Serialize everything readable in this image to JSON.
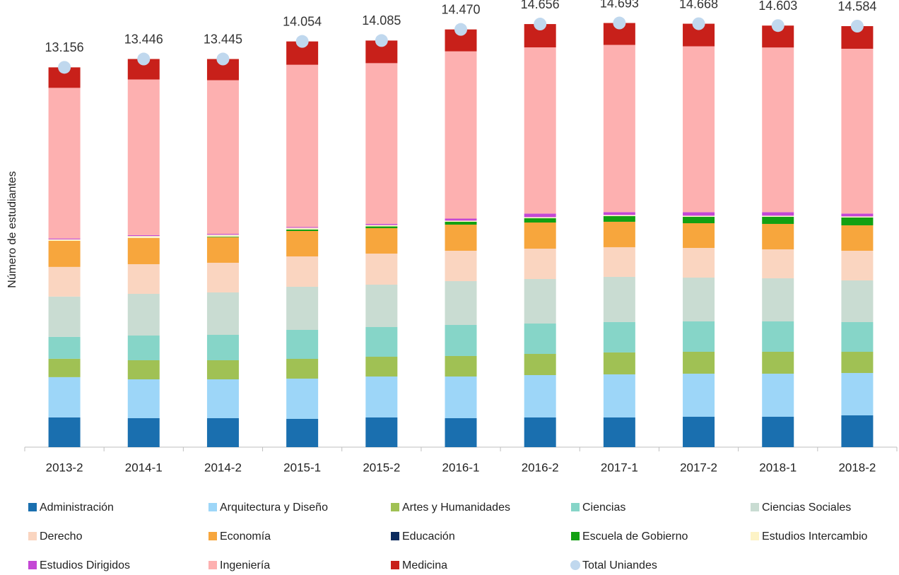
{
  "chart_data": {
    "type": "stacked_bar",
    "y_axis_label": "Número de estudiantes",
    "categories": [
      "2013-2",
      "2014-1",
      "2014-2",
      "2015-1",
      "2015-2",
      "2016-1",
      "2016-2",
      "2017-1",
      "2017-2",
      "2018-1",
      "2018-2"
    ],
    "ylim": [
      0,
      15000
    ],
    "grid": false,
    "legend": "bottom",
    "series": [
      {
        "name": "Administración",
        "color": "#1a6faf",
        "values": [
          1030,
          1003,
          1003,
          979,
          1028,
          1003,
          1028,
          1028,
          1052,
          1052,
          1101
        ]
      },
      {
        "name": "Arquitectura y Diseño",
        "color": "#9dd6f8",
        "values": [
          1395,
          1346,
          1346,
          1395,
          1419,
          1444,
          1468,
          1493,
          1493,
          1493,
          1468
        ]
      },
      {
        "name": "Artes y Humanidades",
        "color": "#a0c154",
        "values": [
          636,
          661,
          661,
          685,
          685,
          710,
          734,
          759,
          759,
          759,
          734
        ]
      },
      {
        "name": "Ciencias",
        "color": "#86d5c8",
        "values": [
          759,
          856,
          881,
          1003,
          1028,
          1077,
          1052,
          1052,
          1052,
          1052,
          1028
        ]
      },
      {
        "name": "Ciencias Sociales",
        "color": "#c9dcd2",
        "values": [
          1395,
          1444,
          1468,
          1493,
          1468,
          1517,
          1542,
          1566,
          1517,
          1493,
          1444
        ]
      },
      {
        "name": "Derecho",
        "color": "#fad5c0",
        "values": [
          1028,
          1028,
          1028,
          1052,
          1077,
          1052,
          1052,
          1028,
          1028,
          1003,
          1028
        ]
      },
      {
        "name": "Economía",
        "color": "#f7a63d",
        "values": [
          905,
          905,
          881,
          881,
          881,
          905,
          905,
          881,
          856,
          881,
          881
        ]
      },
      {
        "name": "Educación",
        "color": "#0a2a5e",
        "values": [
          0,
          0,
          0,
          0,
          0,
          0,
          0,
          0,
          0,
          0,
          0
        ]
      },
      {
        "name": "Escuela de Gobierno",
        "color": "#12a012",
        "values": [
          0,
          0,
          20,
          50,
          60,
          98,
          147,
          196,
          220,
          245,
          269
        ]
      },
      {
        "name": "Estudios Intercambio",
        "color": "#fdf3c6",
        "values": [
          50,
          70,
          70,
          60,
          50,
          40,
          40,
          40,
          40,
          40,
          40
        ]
      },
      {
        "name": "Estudios Dirigidos",
        "color": "#c447d5",
        "values": [
          30,
          30,
          30,
          30,
          40,
          70,
          122,
          98,
          122,
          122,
          98
        ]
      },
      {
        "name": "Ingeniería",
        "color": "#fdb0b0",
        "values": [
          5218,
          5393,
          5323,
          5618,
          5566,
          5795,
          5758,
          5793,
          5746,
          5704,
          5710
        ]
      },
      {
        "name": "Medicina",
        "color": "#c8201a",
        "values": [
          710,
          710,
          734,
          808,
          783,
          759,
          808,
          759,
          783,
          759,
          783
        ]
      },
      {
        "name": "Total Uniandes",
        "color": "#c0d8ee",
        "kind": "marker",
        "values": [
          13156,
          13446,
          13445,
          14054,
          14085,
          14470,
          14656,
          14693,
          14668,
          14603,
          14584
        ],
        "value_labels": [
          "13.156",
          "13.446",
          "13.445",
          "14.054",
          "14.085",
          "14.470",
          "14.656",
          "14.693",
          "14.668",
          "14.603",
          "14.584"
        ]
      }
    ]
  }
}
